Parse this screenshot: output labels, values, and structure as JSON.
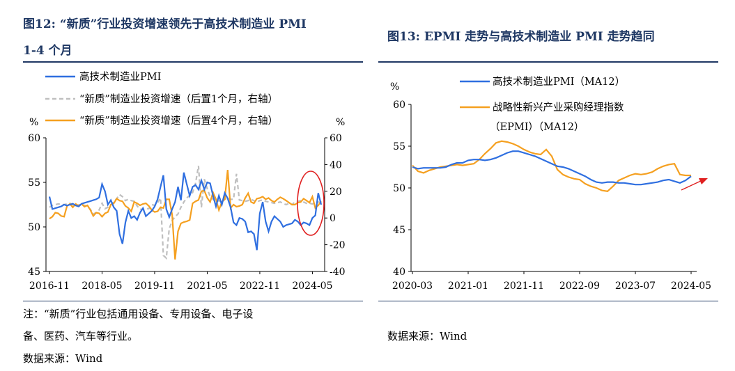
{
  "left_panel": {
    "title_line1": "图12: “新质”行业投资增速领先于高技术制造业 PMI",
    "title_line2": "1-4 个月",
    "note_line1": "注：“新质”行业包括通用设备、专用设备、电子设",
    "note_line2": "备、医药、汽车等行业。",
    "source": "数据来源：Wind"
  },
  "right_panel": {
    "title": "图13: EPMI 走势与高技术制造业 PMI 走势趋同",
    "source": "数据来源：Wind"
  },
  "colors": {
    "blue": "#2f6fe0",
    "orange": "#f5a020",
    "gray": "#bfbfbf",
    "annot_red": "#e02020"
  },
  "chart_data": [
    {
      "type": "line",
      "ylabel_left": "%",
      "ylabel_right": "%",
      "ylim_left": [
        45,
        60
      ],
      "ylim_right": [
        -40,
        60
      ],
      "yticks_left": [
        "60",
        "55",
        "50",
        "45"
      ],
      "yticks_right": [
        "60",
        "40",
        "20",
        "0",
        "-20",
        "-40"
      ],
      "x_tick_labels": [
        "2016-11",
        "2018-05",
        "2019-11",
        "2021-05",
        "2022-11",
        "2024-05"
      ],
      "x_ticks_index": [
        0,
        18,
        36,
        54,
        72,
        90
      ],
      "x_count": 94,
      "legend_position": "top",
      "annotation": "red ellipse around recent data (2023-11 to 2024-05)",
      "series": [
        {
          "name": "高技术制造业PMI",
          "axis": "left",
          "color": "#2f6fe0",
          "style": "solid",
          "values": [
            53.4,
            52.0,
            52.1,
            52.2,
            52.3,
            52.5,
            52.4,
            52.5,
            52.6,
            52.4,
            52.3,
            52.6,
            52.7,
            52.8,
            52.9,
            53.0,
            53.1,
            53.3,
            54.8,
            54.0,
            52.5,
            53.0,
            52.2,
            51.8,
            49.2,
            48.1,
            50.5,
            51.8,
            51.0,
            51.2,
            50.8,
            51.6,
            52.1,
            51.2,
            51.5,
            51.8,
            52.3,
            53.1,
            54.5,
            55.8,
            52.0,
            51.1,
            52.0,
            52.8,
            54.5,
            53.0,
            56.1,
            54.8,
            53.5,
            54.5,
            54.7,
            54.2,
            55.2,
            54.2,
            55.0,
            54.9,
            53.5,
            52.3,
            53.5,
            52.5,
            53.8,
            53.2,
            52.2,
            50.5,
            50.2,
            51.0,
            50.9,
            50.6,
            49.4,
            49.5,
            49.2,
            47.4,
            51.5,
            52.8,
            50.6,
            49.5,
            50.6,
            51.2,
            50.9,
            50.6,
            50.0,
            50.2,
            50.3,
            50.4,
            50.8,
            50.6,
            50.2,
            50.5,
            50.4,
            50.2,
            51.0,
            51.3,
            53.8,
            52.5
          ]
        },
        {
          "name": "“新质”制造业投资增速（后置1个月，右轴）",
          "axis": "right",
          "color": "#bfbfbf",
          "style": "dashed",
          "values": [
            8.0,
            9.5,
            10.0,
            10.5,
            10.2,
            10.0,
            10.5,
            11.0,
            9.8,
            9.5,
            9.8,
            10.2,
            9.5,
            8.5,
            6.5,
            3.0,
            4.0,
            6.0,
            11.0,
            7.0,
            8.0,
            10.0,
            12.0,
            14.5,
            17.5,
            16.0,
            13.0,
            14.0,
            13.0,
            12.5,
            9.0,
            6.5,
            6.5,
            7.0,
            7.0,
            10.0,
            9.5,
            11.5,
            15.0,
            -28.0,
            -30.0,
            -8.0,
            -2.0,
            1.0,
            3.0,
            8.0,
            12.0,
            15.0,
            17.0,
            19.0,
            26.0,
            39.0,
            8.0,
            29.0,
            22.0,
            16.0,
            14.0,
            12.0,
            13.0,
            12.0,
            14.0,
            15.0,
            14.0,
            14.0,
            33.0,
            13.5,
            13.0,
            12.5,
            13.0,
            14.0,
            13.0,
            12.0,
            13.0,
            13.5,
            12.5,
            12.0,
            11.5,
            11.0,
            11.5,
            12.0,
            11.0,
            10.0,
            11.0,
            10.0,
            12.0,
            12.5,
            13.0,
            12.0,
            11.0,
            11.0,
            10.5,
            11.5,
            12.0,
            11.5
          ]
        },
        {
          "name": "“新质”制造业投资增速（后置4个月，右轴）",
          "axis": "right",
          "color": "#f5a020",
          "style": "solid",
          "values": [
            -0.5,
            1.0,
            4.0,
            3.5,
            1.5,
            1.0,
            9.0,
            10.5,
            8.0,
            10.5,
            9.0,
            10.5,
            8.5,
            9.5,
            6.0,
            1.5,
            4.0,
            3.5,
            1.0,
            3.5,
            4.5,
            10.0,
            11.0,
            14.5,
            13.0,
            12.5,
            9.0,
            7.5,
            5.0,
            12.0,
            11.0,
            9.5,
            10.5,
            11.0,
            9.0,
            6.0,
            4.5,
            5.0,
            8.0,
            7.5,
            14.0,
            14.0,
            2.5,
            -31.0,
            -10.0,
            -4.0,
            -3.0,
            -2.5,
            -1.5,
            11.0,
            12.5,
            13.5,
            20.0,
            20.5,
            15.0,
            12.0,
            19.0,
            14.0,
            6.0,
            12.0,
            14.0,
            36.0,
            7.5,
            10.0,
            8.5,
            9.0,
            10.0,
            15.0,
            18.5,
            12.0,
            11.0,
            14.5,
            15.0,
            16.0,
            14.0,
            15.0,
            13.0,
            12.0,
            14.0,
            15.5,
            14.5,
            13.0,
            11.5,
            10.0,
            10.0,
            11.5,
            12.0,
            14.5,
            13.0,
            11.5,
            16.0,
            7.5,
            9.5,
            12.5
          ]
        }
      ]
    },
    {
      "type": "line",
      "ylabel": "%",
      "ylim": [
        40,
        60
      ],
      "yticks": [
        "60",
        "55",
        "50",
        "45",
        "40"
      ],
      "x_tick_labels": [
        "2020-03",
        "2021-01",
        "2021-11",
        "2022-09",
        "2023-07",
        "2024-05"
      ],
      "x_ticks_index": [
        0,
        10,
        20,
        30,
        40,
        50
      ],
      "x_count": 51,
      "legend_position": "top",
      "annotation": "red arrow pointing up-right at the end of the series",
      "series": [
        {
          "name": "高技术制造业PMI（MA12）",
          "color": "#2f6fe0",
          "values": [
            52.5,
            52.3,
            52.4,
            52.4,
            52.4,
            52.4,
            52.5,
            52.8,
            53.0,
            53.0,
            53.3,
            53.4,
            53.4,
            53.3,
            53.4,
            53.6,
            53.9,
            54.2,
            54.4,
            54.4,
            54.2,
            54.0,
            53.8,
            53.5,
            53.2,
            52.9,
            52.6,
            52.5,
            52.3,
            52.0,
            51.7,
            51.4,
            51.0,
            50.7,
            50.6,
            50.7,
            50.7,
            50.6,
            50.6,
            50.5,
            50.4,
            50.4,
            50.5,
            50.6,
            50.7,
            50.9,
            51.0,
            50.8,
            50.6,
            50.9,
            51.4
          ]
        },
        {
          "name": "战略性新兴产业采购经理指数（EPMI）（MA12）",
          "color": "#f5a020",
          "values": [
            52.7,
            52.0,
            51.8,
            52.1,
            52.3,
            52.5,
            52.6,
            52.7,
            52.8,
            52.7,
            52.8,
            52.9,
            53.4,
            54.1,
            54.7,
            55.4,
            55.6,
            55.5,
            55.3,
            55.0,
            54.6,
            54.3,
            54.1,
            54.0,
            54.6,
            53.8,
            52.2,
            51.6,
            51.3,
            51.1,
            51.0,
            50.5,
            50.2,
            50.0,
            49.7,
            49.6,
            50.2,
            50.9,
            51.2,
            51.5,
            51.7,
            51.6,
            51.7,
            51.9,
            52.3,
            52.6,
            52.8,
            52.9,
            51.6,
            51.5,
            51.5
          ]
        }
      ]
    }
  ],
  "chart_left_legend": [
    "高技术制造业PMI",
    "“新质”制造业投资增速（后置1个月，右轴）",
    "“新质”制造业投资增速（后置4个月，右轴）"
  ],
  "chart_right_legend_1": "高技术制造业PMI（MA12）",
  "chart_right_legend_2a": "战略性新兴产业采购经理指数",
  "chart_right_legend_2b": "（EPMI）（MA12）"
}
